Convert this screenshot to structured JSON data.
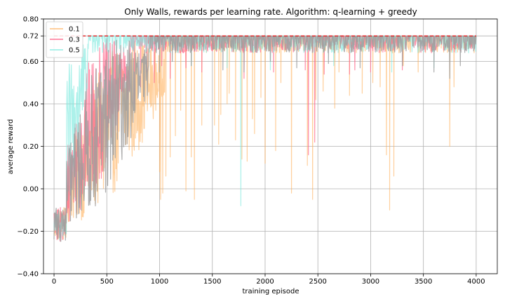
{
  "chart_data": {
    "type": "line",
    "title": "Only Walls, rewards per learning rate. Algorithm: q-learning + greedy",
    "xlabel": "training episode",
    "ylabel": "average reward",
    "xlim": [
      -100,
      4200
    ],
    "ylim": [
      -0.4,
      0.8
    ],
    "x_ticks": [
      0,
      500,
      1000,
      1500,
      2000,
      2500,
      3000,
      3500,
      4000
    ],
    "x_tick_labels": [
      "0",
      "500",
      "1000",
      "1500",
      "2000",
      "2500",
      "3000",
      "3500",
      "4000"
    ],
    "y_ticks": [
      -0.4,
      -0.2,
      0.0,
      0.2,
      0.4,
      0.6,
      0.72,
      0.8
    ],
    "y_tick_labels": [
      "−0.40",
      "−0.20",
      "0.00",
      "0.20",
      "0.40",
      "0.60",
      "0.72",
      "0.80"
    ],
    "grid": true,
    "legend_position": "top-left",
    "reference_line": {
      "y": 0.72,
      "color": "#e41a1c",
      "style": "dashed"
    },
    "series": [
      {
        "name": "0.1",
        "color": "#ffb05c",
        "opacity": 0.6,
        "learn_episodes": 1050,
        "plateau_low": 0.64,
        "plateau_high": 0.72,
        "dips": [
          [
            1000,
            0.08
          ],
          [
            1010,
            -0.05
          ],
          [
            1030,
            -0.02
          ],
          [
            1060,
            0.06
          ],
          [
            1100,
            0.15
          ],
          [
            1150,
            0.25
          ],
          [
            1200,
            0.37
          ],
          [
            1250,
            -0.01
          ],
          [
            1300,
            0.15
          ],
          [
            1330,
            -0.05
          ],
          [
            1400,
            0.3
          ],
          [
            1520,
            0.3
          ],
          [
            1560,
            0.21
          ],
          [
            1580,
            0.35
          ],
          [
            1640,
            0.4
          ],
          [
            1660,
            0.45
          ],
          [
            1720,
            0.23
          ],
          [
            1780,
            0.14
          ],
          [
            1830,
            0.13
          ],
          [
            1880,
            0.33
          ],
          [
            1900,
            0.26
          ],
          [
            1960,
            0.43
          ],
          [
            2000,
            0.12
          ],
          [
            2100,
            0.18
          ],
          [
            2150,
            0.5
          ],
          [
            2250,
            -0.02
          ],
          [
            2400,
            0.11
          ],
          [
            2450,
            -0.05
          ],
          [
            2480,
            0.42
          ],
          [
            2550,
            0.46
          ],
          [
            2660,
            0.38
          ],
          [
            2700,
            0.55
          ],
          [
            2800,
            0.44
          ],
          [
            2920,
            0.45
          ],
          [
            3020,
            0.5
          ],
          [
            3090,
            0.48
          ],
          [
            3150,
            0.16
          ],
          [
            3180,
            -0.1
          ],
          [
            3220,
            0.06
          ],
          [
            3310,
            0.58
          ],
          [
            3450,
            0.55
          ],
          [
            3750,
            0.2
          ],
          [
            3790,
            0.48
          ]
        ]
      },
      {
        "name": "0.3",
        "color": "#ff6b8e",
        "opacity": 0.75,
        "learn_episodes": 720,
        "plateau_low": 0.64,
        "plateau_high": 0.72,
        "dips": [
          [
            760,
            0.4
          ],
          [
            820,
            0.48
          ],
          [
            880,
            0.55
          ],
          [
            950,
            0.5
          ],
          [
            1020,
            0.58
          ],
          [
            1100,
            0.52
          ],
          [
            1250,
            0.57
          ],
          [
            1400,
            0.55
          ],
          [
            1800,
            0.52
          ],
          [
            2080,
            0.55
          ],
          [
            2380,
            0.56
          ],
          [
            2410,
            0.16
          ],
          [
            2470,
            0.22
          ],
          [
            2560,
            0.54
          ],
          [
            2800,
            0.54
          ],
          [
            2850,
            0.56
          ],
          [
            3000,
            0.55
          ],
          [
            3300,
            0.56
          ]
        ]
      },
      {
        "name": "0.5",
        "color": "#7feadf",
        "opacity": 0.65,
        "learn_episodes": 320,
        "plateau_low": 0.64,
        "plateau_high": 0.72,
        "dips": [
          [
            1300,
            0.58
          ],
          [
            1640,
            0.57
          ],
          [
            1770,
            -0.08
          ],
          [
            2050,
            0.56
          ],
          [
            2650,
            0.58
          ],
          [
            3200,
            0.55
          ],
          [
            3600,
            0.57
          ]
        ]
      },
      {
        "name": "",
        "color": "#9e9e9e",
        "opacity": 0.85,
        "learn_episodes": 900,
        "plateau_low": 0.64,
        "plateau_high": 0.72,
        "dips": [
          [
            1000,
            0.55
          ],
          [
            1120,
            0.6
          ],
          [
            1300,
            0.58
          ],
          [
            1600,
            0.56
          ],
          [
            1800,
            0.55
          ],
          [
            2050,
            0.6
          ],
          [
            2300,
            0.57
          ],
          [
            2600,
            0.59
          ],
          [
            2900,
            0.57
          ],
          [
            3300,
            0.58
          ],
          [
            3600,
            0.55
          ],
          [
            3750,
            0.52
          ],
          [
            3850,
            0.58
          ]
        ]
      }
    ]
  }
}
